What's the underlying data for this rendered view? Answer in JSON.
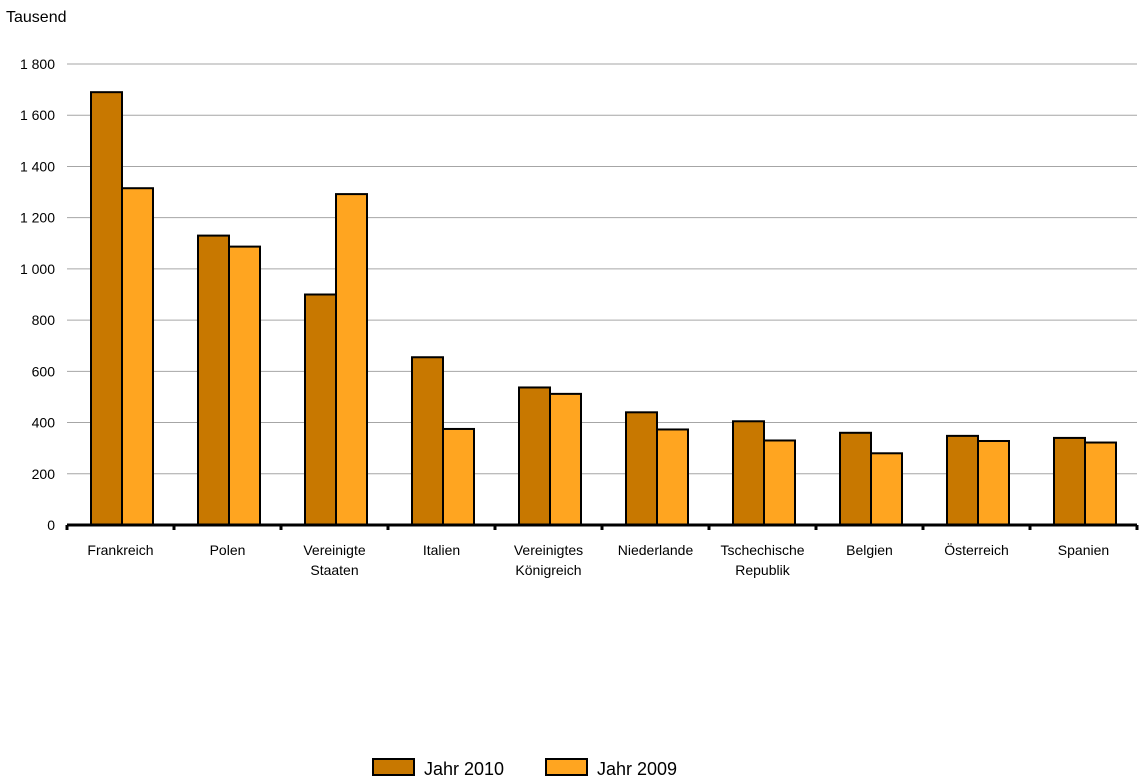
{
  "chart_data": {
    "type": "bar",
    "ylabel": "Tausend",
    "ylim": [
      0,
      1800
    ],
    "yticks": [
      0,
      200,
      400,
      600,
      800,
      1000,
      1200,
      1400,
      1600,
      1800
    ],
    "ytick_labels": [
      "0",
      "200",
      "400",
      "600",
      "800",
      "1 000",
      "1 200",
      "1 400",
      "1 600",
      "1 800"
    ],
    "grid": true,
    "legend_position": "bottom",
    "categories": [
      [
        "Frankreich"
      ],
      [
        "Polen"
      ],
      [
        "Vereinigte",
        "Staaten"
      ],
      [
        "Italien"
      ],
      [
        "Vereinigtes",
        "Königreich"
      ],
      [
        "Niederlande"
      ],
      [
        "Tschechische",
        "Republik"
      ],
      [
        "Belgien"
      ],
      [
        "Österreich"
      ],
      [
        "Spanien"
      ]
    ],
    "series": [
      {
        "name": "Jahr 2010",
        "color": "#c87800",
        "values": [
          1690,
          1130,
          900,
          655,
          537,
          440,
          405,
          360,
          348,
          340
        ]
      },
      {
        "name": "Jahr 2009",
        "color": "#ffa520",
        "values": [
          1315,
          1087,
          1292,
          375,
          512,
          373,
          330,
          280,
          328,
          322
        ]
      }
    ]
  }
}
